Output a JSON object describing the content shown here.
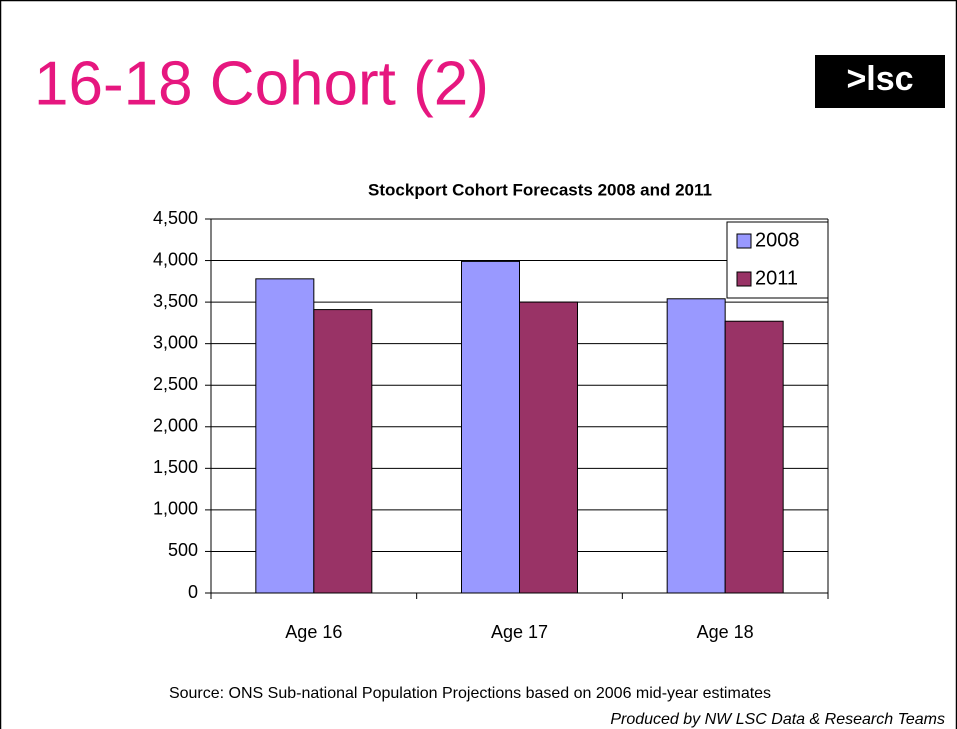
{
  "slide_title": "16-18 Cohort (2)",
  "logo": ">lsc",
  "source": "Source: ONS Sub-national Population Projections based on 2006 mid-year estimates",
  "credit": "Produced by NW LSC Data & Research Teams",
  "chart_data": {
    "type": "bar",
    "title": "Stockport Cohort Forecasts 2008 and 2011",
    "categories": [
      "Age 16",
      "Age 17",
      "Age 18"
    ],
    "series": [
      {
        "name": "2008",
        "color": "#9999ff",
        "values": [
          3780,
          3990,
          3540
        ]
      },
      {
        "name": "2011",
        "color": "#993366",
        "values": [
          3410,
          3500,
          3270
        ]
      }
    ],
    "ylim": [
      0,
      4500
    ],
    "yticks": [
      0,
      500,
      {
        "value": 1000,
        "label": "1,000"
      },
      {
        "value": 1500,
        "label": "1,500"
      },
      {
        "value": 2000,
        "label": "2,000"
      },
      {
        "value": 2500,
        "label": "2,500"
      },
      {
        "value": 3000,
        "label": "3,000"
      },
      {
        "value": 3500,
        "label": "3,500"
      },
      {
        "value": 4000,
        "label": "4,000"
      },
      {
        "value": 4500,
        "label": "4,500"
      }
    ],
    "grid": true,
    "legend": "top-right"
  }
}
